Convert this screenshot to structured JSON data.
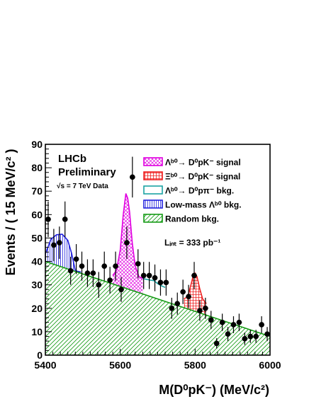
{
  "chart_data": {
    "type": "scatter",
    "xlabel": "M(D⁰pK⁻) (MeV/c²)",
    "ylabel": "Events / ( 15 MeV/c² )",
    "xlim": [
      5400,
      6000
    ],
    "ylim": [
      0,
      90
    ],
    "x_ticks": [
      "5400",
      "5600",
      "5800",
      "6000"
    ],
    "y_ticks": [
      "0",
      "10",
      "20",
      "30",
      "40",
      "50",
      "60",
      "70",
      "80",
      "90"
    ],
    "annotations": {
      "experiment": "LHCb",
      "status": "Preliminary",
      "energy": "√s = 7 TeV Data",
      "luminosity": "Lᵢₙₜ = 333 pb⁻¹"
    },
    "legend": {
      "placement": "top-right",
      "entries": [
        {
          "label": "Λᵇ⁰→ D⁰pK⁻ signal",
          "color": "#e000e0",
          "pattern": "crosshatch"
        },
        {
          "label": "Ξᵇ⁰→ D⁰pK⁻ signal",
          "color": "#ee2222",
          "pattern": "grid"
        },
        {
          "label": "Λᵇ⁰→ D⁰pπ⁻  bkg.",
          "color": "#1aa3a3",
          "pattern": "empty"
        },
        {
          "label": "Low-mass Λᵇ⁰ bkg.",
          "color": "#2020dd",
          "pattern": "vertical"
        },
        {
          "label": "Random bkg.",
          "color": "#139a13",
          "pattern": "diagonal"
        }
      ]
    },
    "points": {
      "x": [
        5407.5,
        5422.5,
        5437.5,
        5452.5,
        5467.5,
        5482.5,
        5497.5,
        5512.5,
        5527.5,
        5542.5,
        5557.5,
        5572.5,
        5587.5,
        5602.5,
        5617.5,
        5632.5,
        5647.5,
        5662.5,
        5677.5,
        5692.5,
        5707.5,
        5722.5,
        5737.5,
        5752.5,
        5767.5,
        5782.5,
        5797.5,
        5812.5,
        5827.5,
        5842.5,
        5857.5,
        5872.5,
        5887.5,
        5902.5,
        5917.5,
        5932.5,
        5947.5,
        5962.5,
        5977.5,
        5992.5
      ],
      "y": [
        58,
        47,
        48,
        58,
        36,
        41,
        38,
        35,
        35,
        30,
        38,
        32,
        38,
        28,
        48,
        76,
        39,
        34,
        34,
        33,
        31,
        31,
        20,
        22,
        27,
        25,
        34,
        19,
        20,
        15,
        5,
        14,
        9,
        13,
        14,
        7,
        8,
        8,
        13,
        9
      ],
      "yerr": [
        7.6,
        6.9,
        6.9,
        7.6,
        6.0,
        6.4,
        6.2,
        5.9,
        5.9,
        5.5,
        6.2,
        5.7,
        6.2,
        5.3,
        6.9,
        8.7,
        6.2,
        5.8,
        5.8,
        5.7,
        5.6,
        5.6,
        4.5,
        4.7,
        5.2,
        5.0,
        5.8,
        4.4,
        4.5,
        3.9,
        2.2,
        3.7,
        3.0,
        3.6,
        3.7,
        2.6,
        2.8,
        2.8,
        3.6,
        3.0
      ]
    },
    "components": {
      "random_bkg": {
        "x": [
          5400,
          6000
        ],
        "y": [
          40,
          8
        ]
      },
      "low_mass_bkg": {
        "x": [
          5400,
          5415,
          5430,
          5445,
          5460,
          5470,
          5480,
          5495
        ],
        "y": [
          43.2,
          49.5,
          51.4,
          51.6,
          49.0,
          43.5,
          36.0,
          35.5
        ]
      },
      "lb_signal": {
        "x": [
          5580,
          5590,
          5600,
          5608,
          5615,
          5620,
          5625,
          5632,
          5640,
          5650,
          5660
        ],
        "y": [
          34.0,
          36.2,
          45.0,
          60.0,
          69.0,
          67.0,
          61.0,
          48.0,
          38.0,
          33.5,
          32.8
        ]
      },
      "xib_signal": {
        "x": [
          5770,
          5780,
          5788,
          5795,
          5800,
          5805,
          5812,
          5820,
          5830
        ],
        "y": [
          24.1,
          24.8,
          29.5,
          34.0,
          35.0,
          33.5,
          28.5,
          24.0,
          22.0
        ]
      },
      "lb_dppi_bkg": {
        "x": [
          5660,
          5680,
          5690,
          5700,
          5710,
          5720
        ],
        "y": [
          32.7,
          32.0,
          31.8,
          30.5,
          29.6,
          28.9
        ]
      }
    }
  }
}
